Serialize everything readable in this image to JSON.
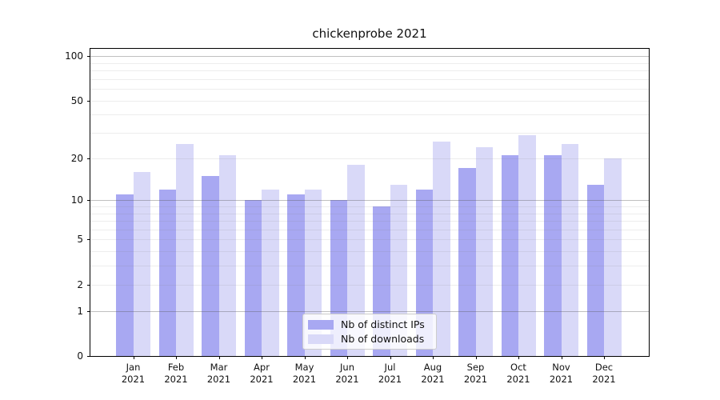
{
  "title": "chickenprobe 2021",
  "colors": {
    "distinct_ips": "#a8a8f2",
    "downloads": "#d9d9f8",
    "axis": "#000000",
    "legend_border": "#cccccc"
  },
  "legend": {
    "items": [
      {
        "label": "Nb of distinct IPs",
        "color": "#a8a8f2"
      },
      {
        "label": "Nb of downloads",
        "color": "#d9d9f8"
      }
    ]
  },
  "chart_data": {
    "type": "bar",
    "title": "chickenprobe 2021",
    "categories": [
      "Jan 2021",
      "Feb 2021",
      "Mar 2021",
      "Apr 2021",
      "May 2021",
      "Jun 2021",
      "Jul 2021",
      "Aug 2021",
      "Sep 2021",
      "Oct 2021",
      "Nov 2021",
      "Dec 2021"
    ],
    "months": [
      "Jan",
      "Feb",
      "Mar",
      "Apr",
      "May",
      "Jun",
      "Jul",
      "Aug",
      "Sep",
      "Oct",
      "Nov",
      "Dec"
    ],
    "year": "2021",
    "series": [
      {
        "name": "Nb of distinct IPs",
        "color": "#a8a8f2",
        "values": [
          11,
          12,
          15,
          10,
          11,
          10,
          9,
          12,
          17,
          21,
          21,
          13
        ]
      },
      {
        "name": "Nb of downloads",
        "color": "#d9d9f8",
        "values": [
          16,
          25,
          21,
          12,
          12,
          18,
          13,
          26,
          24,
          29,
          25,
          20
        ]
      }
    ],
    "xlabel": "",
    "ylabel": "",
    "y_scale": "symlog (position proportional to log10(1+value))",
    "ylim": [
      0,
      100
    ],
    "y_tick_values": [
      0,
      1,
      2,
      5,
      10,
      20,
      50,
      100
    ],
    "y_tick_labels": [
      "0",
      "1",
      "2",
      "5",
      "10",
      "20",
      "50",
      "100"
    ],
    "y_major_gridlines": [
      1,
      10,
      100
    ],
    "y_minor_gridlines": [
      2,
      3,
      4,
      5,
      6,
      7,
      8,
      9,
      20,
      30,
      40,
      50,
      60,
      70,
      80,
      90
    ],
    "grid": true,
    "legend_position": "lower center"
  }
}
